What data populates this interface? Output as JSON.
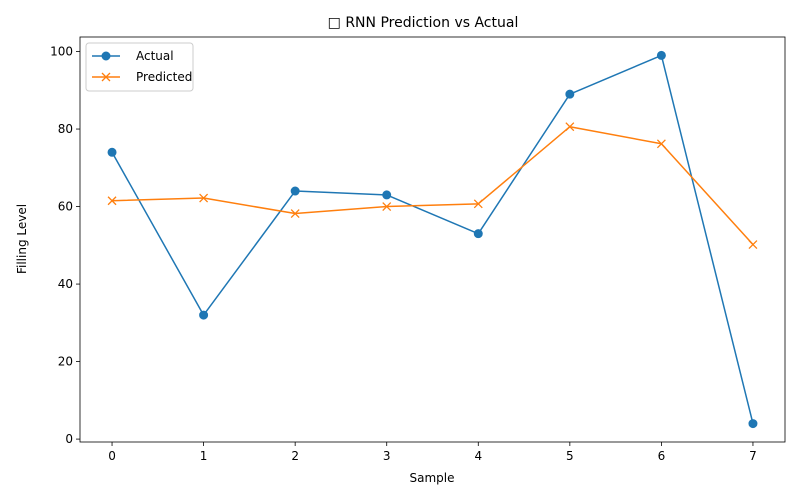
{
  "chart_data": {
    "type": "line",
    "title": "□ RNN Prediction vs Actual",
    "xlabel": "Sample",
    "ylabel": "Filling Level",
    "x": [
      0,
      1,
      2,
      3,
      4,
      5,
      6,
      7
    ],
    "xlim": [
      -0.35,
      7.35
    ],
    "ylim": [
      -0.75,
      103.75
    ],
    "xticks": [
      0,
      1,
      2,
      3,
      4,
      5,
      6,
      7
    ],
    "yticks": [
      0,
      20,
      40,
      60,
      80,
      100
    ],
    "grid": false,
    "legend": "upper-left",
    "series": [
      {
        "name": "Actual",
        "color": "#1f77b4",
        "marker": "circle",
        "values": [
          74,
          32,
          64,
          63,
          53,
          89,
          99,
          4
        ]
      },
      {
        "name": "Predicted",
        "color": "#ff7f0e",
        "marker": "x",
        "values": [
          61.5,
          62.2,
          58.2,
          60,
          60.7,
          80.6,
          76.2,
          50.2
        ]
      }
    ]
  }
}
